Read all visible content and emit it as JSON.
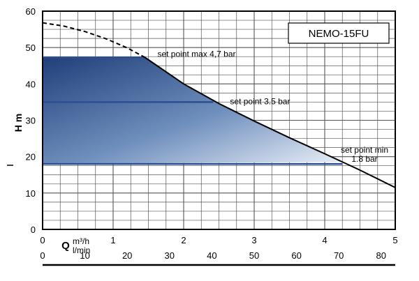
{
  "chart_data": {
    "type": "line",
    "title": "NEMO-15FU",
    "ylabel": "H m",
    "xlabel_symbol": "Q",
    "x_unit_primary": "m³/h",
    "x_unit_secondary": "l/min",
    "xlim": [
      0,
      5
    ],
    "ylim": [
      0,
      60
    ],
    "y_ticks": [
      "0",
      "10",
      "20",
      "30",
      "40",
      "50",
      "60"
    ],
    "x_ticks_primary": [
      "0",
      "1",
      "2",
      "3",
      "4",
      "5"
    ],
    "x_ticks_secondary": [
      "0",
      "10",
      "20",
      "30",
      "40",
      "50",
      "60",
      "70",
      "80"
    ],
    "secondary_per_primary": 16.667,
    "grid": true,
    "series": [
      {
        "style": "dashed",
        "x": [
          0.0,
          0.3,
          0.6,
          0.9,
          1.2,
          1.45
        ],
        "y": [
          56.8,
          55.9,
          54.4,
          52.4,
          49.9,
          47.3
        ]
      },
      {
        "style": "solid",
        "x": [
          1.45,
          2.0,
          2.5,
          3.0,
          3.5,
          4.0,
          4.5,
          5.0
        ],
        "y": [
          47.3,
          40.0,
          34.6,
          29.8,
          25.2,
          20.8,
          16.3,
          11.5
        ]
      }
    ],
    "setpoints": [
      {
        "label": "set point max 4,7 bar",
        "h": 47.3,
        "q_end": 1.45
      },
      {
        "label": "set point 3.5 bar",
        "h": 35.0,
        "q_end": 2.42
      },
      {
        "label_line1": "set point min",
        "label_line2": "1.8 bar",
        "h": 18.0,
        "q_end": 4.25
      }
    ],
    "colors": {
      "region_dark": "#254f8e",
      "region_light": "#e8eef6",
      "setpoint_line": "#2a4f93",
      "curve": "#000000",
      "grid": "#555555"
    }
  }
}
